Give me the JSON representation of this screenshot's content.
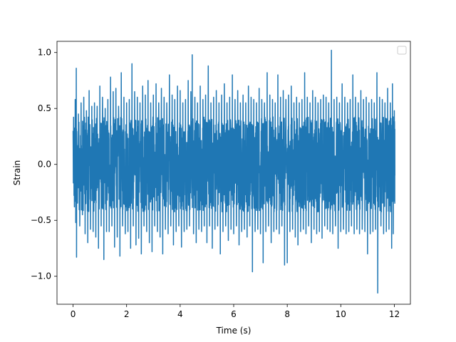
{
  "chart_data": {
    "type": "line",
    "title": "",
    "xlabel": "Time (s)",
    "ylabel": "Strain",
    "xlim": [
      -0.6,
      12.6
    ],
    "ylim": [
      -1.25,
      1.1
    ],
    "xticks": [
      0,
      2,
      4,
      6,
      8,
      10,
      12
    ],
    "xtick_labels": [
      "0",
      "2",
      "4",
      "6",
      "8",
      "10",
      "12"
    ],
    "yticks": [
      -1.0,
      -0.5,
      0.0,
      0.5,
      1.0
    ],
    "ytick_labels": [
      "−1.0",
      "−0.5",
      "0.0",
      "0.5",
      "1.0"
    ],
    "grid": false,
    "legend": {
      "placement": "upper right",
      "entries": []
    },
    "series": [
      {
        "color": "#1f77b4",
        "x_range": [
          0,
          12
        ],
        "points": [
          [
            0.0,
            0.3
          ],
          [
            0.05,
            -0.38
          ],
          [
            0.08,
            0.58
          ],
          [
            0.1,
            -0.52
          ],
          [
            0.12,
            0.86
          ],
          [
            0.13,
            -0.83
          ],
          [
            0.2,
            0.45
          ],
          [
            0.25,
            -0.55
          ],
          [
            0.3,
            0.55
          ],
          [
            0.35,
            -0.45
          ],
          [
            0.4,
            0.6
          ],
          [
            0.45,
            -0.62
          ],
          [
            0.5,
            0.48
          ],
          [
            0.55,
            -0.7
          ],
          [
            0.6,
            0.66
          ],
          [
            0.65,
            -0.58
          ],
          [
            0.7,
            0.52
          ],
          [
            0.75,
            -0.6
          ],
          [
            0.8,
            0.55
          ],
          [
            0.85,
            -0.65
          ],
          [
            0.9,
            0.52
          ],
          [
            0.95,
            -0.75
          ],
          [
            1.0,
            0.7
          ],
          [
            1.05,
            -0.55
          ],
          [
            1.1,
            0.6
          ],
          [
            1.15,
            -0.85
          ],
          [
            1.2,
            0.5
          ],
          [
            1.25,
            -0.6
          ],
          [
            1.3,
            0.58
          ],
          [
            1.35,
            -0.6
          ],
          [
            1.4,
            0.78
          ],
          [
            1.45,
            -0.55
          ],
          [
            1.5,
            0.65
          ],
          [
            1.55,
            -0.74
          ],
          [
            1.6,
            0.68
          ],
          [
            1.65,
            -0.65
          ],
          [
            1.7,
            0.52
          ],
          [
            1.75,
            -0.82
          ],
          [
            1.8,
            0.82
          ],
          [
            1.85,
            -0.55
          ],
          [
            1.9,
            0.6
          ],
          [
            1.95,
            -0.62
          ],
          [
            2.0,
            0.55
          ],
          [
            2.05,
            -0.6
          ],
          [
            2.1,
            0.58
          ],
          [
            2.15,
            -0.75
          ],
          [
            2.2,
            0.9
          ],
          [
            2.25,
            -0.55
          ],
          [
            2.3,
            0.65
          ],
          [
            2.35,
            -0.72
          ],
          [
            2.4,
            0.6
          ],
          [
            2.45,
            -0.66
          ],
          [
            2.5,
            0.55
          ],
          [
            2.55,
            -0.8
          ],
          [
            2.6,
            0.7
          ],
          [
            2.65,
            -0.55
          ],
          [
            2.7,
            0.62
          ],
          [
            2.75,
            -0.6
          ],
          [
            2.8,
            0.75
          ],
          [
            2.85,
            -0.7
          ],
          [
            2.9,
            0.55
          ],
          [
            2.95,
            -0.78
          ],
          [
            3.0,
            0.62
          ],
          [
            3.05,
            -0.55
          ],
          [
            3.1,
            0.72
          ],
          [
            3.15,
            -0.6
          ],
          [
            3.2,
            0.55
          ],
          [
            3.25,
            -0.65
          ],
          [
            3.3,
            0.68
          ],
          [
            3.35,
            -0.8
          ],
          [
            3.4,
            0.6
          ],
          [
            3.45,
            -0.58
          ],
          [
            3.5,
            0.55
          ],
          [
            3.55,
            -0.62
          ],
          [
            3.6,
            0.8
          ],
          [
            3.65,
            -0.55
          ],
          [
            3.7,
            0.62
          ],
          [
            3.75,
            -0.72
          ],
          [
            3.8,
            0.58
          ],
          [
            3.85,
            -0.6
          ],
          [
            3.9,
            0.7
          ],
          [
            3.95,
            -0.55
          ],
          [
            4.0,
            0.66
          ],
          [
            4.05,
            -0.74
          ],
          [
            4.1,
            0.55
          ],
          [
            4.15,
            -0.6
          ],
          [
            4.2,
            0.58
          ],
          [
            4.25,
            -0.58
          ],
          [
            4.3,
            0.75
          ],
          [
            4.35,
            -0.55
          ],
          [
            4.4,
            0.65
          ],
          [
            4.45,
            0.98
          ],
          [
            4.5,
            -0.62
          ],
          [
            4.55,
            0.6
          ],
          [
            4.6,
            -0.7
          ],
          [
            4.65,
            0.55
          ],
          [
            4.7,
            -0.58
          ],
          [
            4.75,
            0.7
          ],
          [
            4.8,
            -0.6
          ],
          [
            4.85,
            0.58
          ],
          [
            4.9,
            -0.55
          ],
          [
            4.95,
            0.62
          ],
          [
            5.0,
            -0.7
          ],
          [
            5.05,
            0.88
          ],
          [
            5.1,
            -0.55
          ],
          [
            5.15,
            0.55
          ],
          [
            5.2,
            -0.75
          ],
          [
            5.25,
            0.6
          ],
          [
            5.3,
            -0.58
          ],
          [
            5.35,
            0.66
          ],
          [
            5.4,
            -0.55
          ],
          [
            5.45,
            0.55
          ],
          [
            5.5,
            -0.8
          ],
          [
            5.55,
            0.62
          ],
          [
            5.6,
            -0.6
          ],
          [
            5.65,
            0.72
          ],
          [
            5.7,
            -0.55
          ],
          [
            5.75,
            0.55
          ],
          [
            5.8,
            -0.68
          ],
          [
            5.85,
            0.6
          ],
          [
            5.9,
            -0.58
          ],
          [
            5.95,
            0.8
          ],
          [
            6.0,
            -0.62
          ],
          [
            6.05,
            0.58
          ],
          [
            6.1,
            -0.55
          ],
          [
            6.15,
            0.66
          ],
          [
            6.2,
            -0.72
          ],
          [
            6.25,
            0.55
          ],
          [
            6.3,
            -0.6
          ],
          [
            6.35,
            0.62
          ],
          [
            6.4,
            -0.58
          ],
          [
            6.45,
            0.55
          ],
          [
            6.5,
            -0.65
          ],
          [
            6.55,
            0.7
          ],
          [
            6.6,
            -0.55
          ],
          [
            6.65,
            0.6
          ],
          [
            6.7,
            -0.96
          ],
          [
            6.75,
            0.58
          ],
          [
            6.8,
            -0.6
          ],
          [
            6.85,
            0.55
          ],
          [
            6.9,
            -0.58
          ],
          [
            6.95,
            0.68
          ],
          [
            7.0,
            -0.62
          ],
          [
            7.05,
            0.58
          ],
          [
            7.1,
            -0.88
          ],
          [
            7.15,
            0.55
          ],
          [
            7.2,
            -0.6
          ],
          [
            7.25,
            0.82
          ],
          [
            7.3,
            -0.55
          ],
          [
            7.35,
            0.62
          ],
          [
            7.4,
            -0.7
          ],
          [
            7.45,
            0.58
          ],
          [
            7.5,
            -0.6
          ],
          [
            7.55,
            0.55
          ],
          [
            7.6,
            -0.58
          ],
          [
            7.65,
            0.8
          ],
          [
            7.7,
            -0.62
          ],
          [
            7.75,
            0.6
          ],
          [
            7.8,
            -0.55
          ],
          [
            7.85,
            0.66
          ],
          [
            7.9,
            -0.9
          ],
          [
            7.95,
            0.58
          ],
          [
            8.0,
            -0.88
          ],
          [
            8.05,
            0.62
          ],
          [
            8.1,
            -0.6
          ],
          [
            8.15,
            0.7
          ],
          [
            8.2,
            -0.58
          ],
          [
            8.25,
            0.55
          ],
          [
            8.3,
            -0.65
          ],
          [
            8.35,
            0.6
          ],
          [
            8.4,
            -0.72
          ],
          [
            8.45,
            0.55
          ],
          [
            8.5,
            -0.6
          ],
          [
            8.55,
            0.58
          ],
          [
            8.6,
            -0.58
          ],
          [
            8.65,
            0.82
          ],
          [
            8.7,
            -0.62
          ],
          [
            8.75,
            0.6
          ],
          [
            8.8,
            -0.55
          ],
          [
            8.85,
            0.55
          ],
          [
            8.9,
            -0.7
          ],
          [
            8.95,
            0.66
          ],
          [
            9.0,
            -0.58
          ],
          [
            9.05,
            0.6
          ],
          [
            9.1,
            -0.62
          ],
          [
            9.15,
            0.55
          ],
          [
            9.2,
            -0.6
          ],
          [
            9.25,
            0.58
          ],
          [
            9.3,
            -0.66
          ],
          [
            9.35,
            0.62
          ],
          [
            9.4,
            -0.55
          ],
          [
            9.45,
            0.6
          ],
          [
            9.5,
            -0.58
          ],
          [
            9.55,
            0.55
          ],
          [
            9.6,
            -0.6
          ],
          [
            9.65,
            1.02
          ],
          [
            9.7,
            -0.62
          ],
          [
            9.75,
            0.58
          ],
          [
            9.8,
            -0.55
          ],
          [
            9.85,
            0.6
          ],
          [
            9.9,
            -0.75
          ],
          [
            9.95,
            0.55
          ],
          [
            10.0,
            -0.6
          ],
          [
            10.05,
            0.72
          ],
          [
            10.1,
            -0.58
          ],
          [
            10.15,
            0.6
          ],
          [
            10.2,
            -0.62
          ],
          [
            10.25,
            0.55
          ],
          [
            10.3,
            -0.6
          ],
          [
            10.35,
            0.58
          ],
          [
            10.4,
            -0.55
          ],
          [
            10.45,
            0.8
          ],
          [
            10.5,
            -0.62
          ],
          [
            10.55,
            0.6
          ],
          [
            10.6,
            -0.58
          ],
          [
            10.65,
            0.55
          ],
          [
            10.7,
            -0.62
          ],
          [
            10.75,
            0.66
          ],
          [
            10.8,
            -0.58
          ],
          [
            10.85,
            0.58
          ],
          [
            10.9,
            -0.6
          ],
          [
            10.95,
            0.6
          ],
          [
            11.0,
            -0.8
          ],
          [
            11.05,
            0.55
          ],
          [
            11.1,
            -0.62
          ],
          [
            11.15,
            0.58
          ],
          [
            11.2,
            -0.6
          ],
          [
            11.25,
            0.55
          ],
          [
            11.3,
            -0.58
          ],
          [
            11.35,
            0.82
          ],
          [
            11.38,
            -1.15
          ],
          [
            11.45,
            0.6
          ],
          [
            11.5,
            -0.55
          ],
          [
            11.55,
            0.58
          ],
          [
            11.6,
            -0.62
          ],
          [
            11.65,
            0.55
          ],
          [
            11.7,
            -0.6
          ],
          [
            11.75,
            0.68
          ],
          [
            11.8,
            -0.58
          ],
          [
            11.85,
            0.55
          ],
          [
            11.9,
            -0.75
          ],
          [
            11.93,
            0.72
          ],
          [
            11.96,
            -0.62
          ],
          [
            12.0,
            0.48
          ],
          [
            12.02,
            -0.1
          ]
        ]
      }
    ]
  }
}
